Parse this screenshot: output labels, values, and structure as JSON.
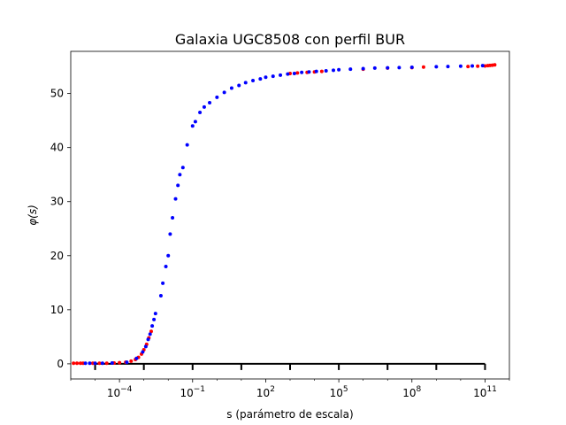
{
  "chart_data": {
    "type": "scatter",
    "title": "Galaxia UGC8508 con perfil BUR",
    "xlabel": "s (parámetro de escala)",
    "ylabel": "φ(s)",
    "x_scale": "log",
    "xlim": [
      1e-06,
      1000000000000.0
    ],
    "ylim": [
      -2.8,
      57.8
    ],
    "grid": false,
    "x_ticks": [
      {
        "value": 0.0001,
        "base": "10",
        "exp": "−4"
      },
      {
        "value": 0.1,
        "base": "10",
        "exp": "−1"
      },
      {
        "value": 100.0,
        "base": "10",
        "exp": "2"
      },
      {
        "value": 100000.0,
        "base": "10",
        "exp": "5"
      },
      {
        "value": 100000000.0,
        "base": "10",
        "exp": "8"
      },
      {
        "value": 100000000000.0,
        "base": "10",
        "exp": "11"
      }
    ],
    "y_ticks": [
      0,
      10,
      20,
      30,
      40,
      50
    ],
    "baseline_ticks": [
      1e-05,
      0.001,
      0.1,
      10.0,
      1000.0,
      100000.0,
      10000000.0,
      1000000000.0,
      100000000000.0
    ],
    "series": [
      {
        "color": "#ff0000",
        "points": [
          [
            1.3e-06,
            0.1
          ],
          [
            1.8e-06,
            0.1
          ],
          [
            2.5e-06,
            0.1
          ],
          [
            3.2e-06,
            0.1
          ],
          [
            8e-06,
            0.1
          ],
          [
            1.5e-05,
            0.1
          ],
          [
            3e-05,
            0.1
          ],
          [
            6e-05,
            0.15
          ],
          [
            0.0001,
            0.2
          ],
          [
            0.00018,
            0.3
          ],
          [
            0.0003,
            0.5
          ],
          [
            0.00045,
            0.8
          ],
          [
            0.0006,
            1.2
          ],
          [
            0.0008,
            1.8
          ],
          [
            0.001,
            2.6
          ],
          [
            0.0013,
            3.6
          ],
          [
            0.0016,
            4.8
          ],
          [
            0.002,
            6.0
          ],
          [
            1000.0,
            53.7
          ],
          [
            2000.0,
            53.8
          ],
          [
            5000.0,
            53.9
          ],
          [
            10000.0,
            54.0
          ],
          [
            20000.0,
            54.1
          ],
          [
            1000000.0,
            54.5
          ],
          [
            10000000.0,
            54.7
          ],
          [
            100000000.0,
            54.8
          ],
          [
            300000000.0,
            54.9
          ],
          [
            20000000000.0,
            55.0
          ],
          [
            50000000000.0,
            55.05
          ],
          [
            100000000000.0,
            55.1
          ],
          [
            130000000000.0,
            55.15
          ],
          [
            160000000000.0,
            55.2
          ],
          [
            200000000000.0,
            55.25
          ],
          [
            250000000000.0,
            55.3
          ]
        ]
      },
      {
        "color": "#0000ff",
        "points": [
          [
            4e-06,
            0.1
          ],
          [
            6e-06,
            0.1
          ],
          [
            1e-05,
            0.1
          ],
          [
            2e-05,
            0.1
          ],
          [
            5e-05,
            0.15
          ],
          [
            0.0002,
            0.3
          ],
          [
            0.0005,
            1.0
          ],
          [
            0.0009,
            2.2
          ],
          [
            0.0012,
            3.2
          ],
          [
            0.0015,
            4.5
          ],
          [
            0.0018,
            5.5
          ],
          [
            0.0022,
            7.0
          ],
          [
            0.0026,
            8.2
          ],
          [
            0.003,
            9.3
          ],
          [
            0.005,
            12.6
          ],
          [
            0.006,
            14.9
          ],
          [
            0.008,
            18.0
          ],
          [
            0.01,
            20.0
          ],
          [
            0.012,
            24.0
          ],
          [
            0.015,
            27.0
          ],
          [
            0.02,
            30.5
          ],
          [
            0.025,
            33.0
          ],
          [
            0.03,
            35.0
          ],
          [
            0.04,
            36.3
          ],
          [
            0.06,
            40.5
          ],
          [
            0.1,
            44.0
          ],
          [
            0.13,
            44.8
          ],
          [
            0.2,
            46.5
          ],
          [
            0.3,
            47.5
          ],
          [
            0.5,
            48.3
          ],
          [
            1,
            49.3
          ],
          [
            2,
            50.2
          ],
          [
            4,
            51.0
          ],
          [
            8,
            51.5
          ],
          [
            15,
            52.0
          ],
          [
            30,
            52.4
          ],
          [
            60,
            52.7
          ],
          [
            100,
            53.0
          ],
          [
            200,
            53.2
          ],
          [
            400,
            53.4
          ],
          [
            800,
            53.6
          ],
          [
            1500.0,
            53.7
          ],
          [
            3000.0,
            53.9
          ],
          [
            6000.0,
            54.0
          ],
          [
            12000.0,
            54.1
          ],
          [
            30000.0,
            54.2
          ],
          [
            60000.0,
            54.3
          ],
          [
            100000.0,
            54.4
          ],
          [
            300000.0,
            54.5
          ],
          [
            1000000.0,
            54.6
          ],
          [
            3000000.0,
            54.7
          ],
          [
            10000000.0,
            54.75
          ],
          [
            30000000.0,
            54.8
          ],
          [
            100000000.0,
            54.85
          ],
          [
            1000000000.0,
            54.95
          ],
          [
            3000000000.0,
            55.0
          ],
          [
            10000000000.0,
            55.05
          ],
          [
            30000000000.0,
            55.1
          ],
          [
            80000000000.0,
            55.15
          ]
        ]
      }
    ]
  }
}
